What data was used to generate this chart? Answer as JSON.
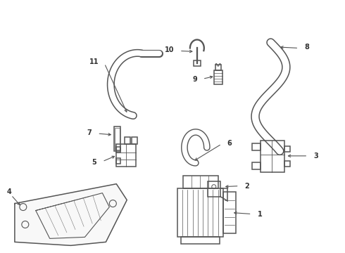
{
  "bg_color": "#ffffff",
  "line_color": "#555555",
  "label_color": "#333333",
  "lw": 1.1,
  "fig_w": 4.9,
  "fig_h": 3.6,
  "dpi": 100
}
